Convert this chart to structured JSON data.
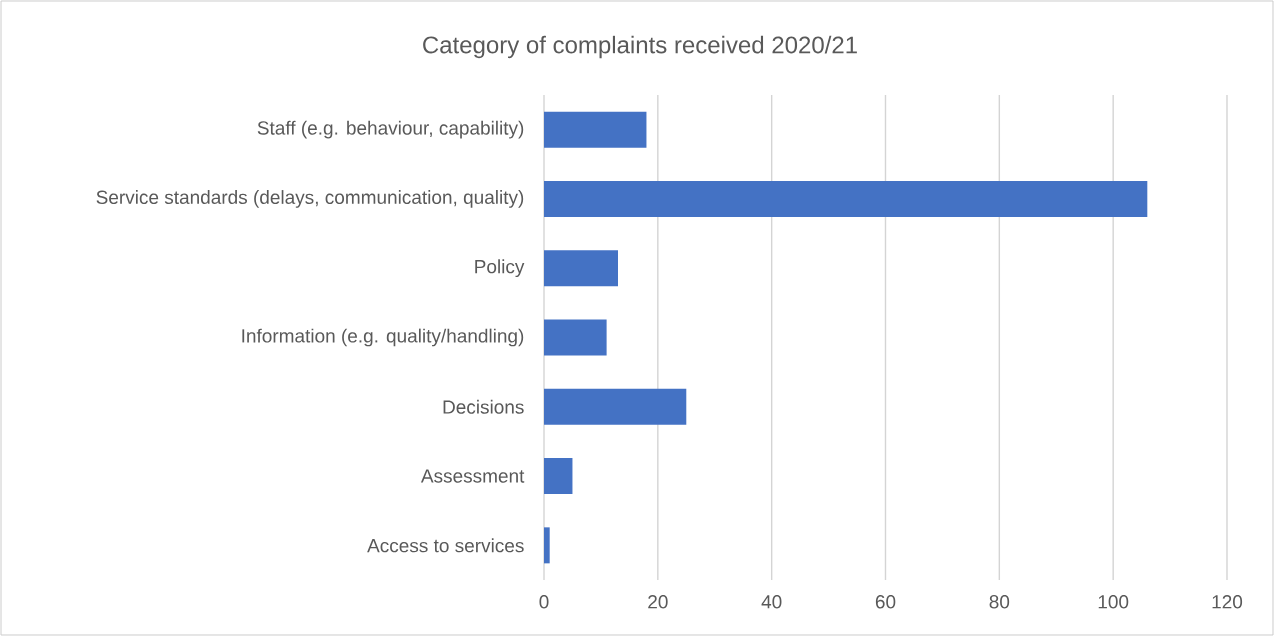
{
  "chart_data": {
    "type": "bar",
    "orientation": "horizontal",
    "title": "Category of complaints received 2020/21",
    "categories": [
      "Staff (e.g. behaviour, capability)",
      "Service standards (delays, communication, quality)",
      "Policy",
      "Information (e.g. quality/handling)",
      "Decisions",
      "Assessment",
      "Access to services"
    ],
    "values": [
      18,
      106,
      13,
      11,
      25,
      5,
      1
    ],
    "color": "#4472c4",
    "xlim": [
      0,
      120
    ],
    "xticks": [
      0,
      20,
      40,
      60,
      80,
      100,
      120
    ],
    "grid": "x"
  }
}
